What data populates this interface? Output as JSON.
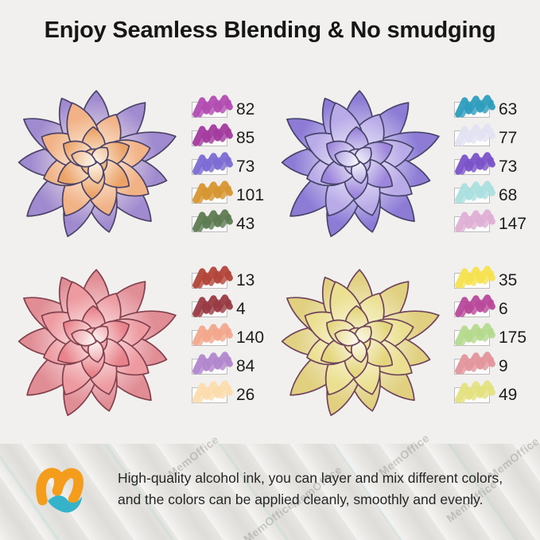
{
  "title": "Enjoy Seamless Blending & No smudging",
  "background": "#f1f0ee",
  "panels": [
    {
      "position": "top-left",
      "flower_alt": "watercolor succulent, peach center with lavender outer petals",
      "palette": {
        "base": "#fcf4ea",
        "outer": "#a18bd0",
        "mid": "#f1b286",
        "inner": "#eca367",
        "center_in": "#fbe3c4",
        "center_out": "#eea35e",
        "ink": "#4b4368"
      },
      "swatches": [
        {
          "num": "82",
          "color": "#b24cb2"
        },
        {
          "num": "85",
          "color": "#a33a9e"
        },
        {
          "num": "73",
          "color": "#7a6ad2"
        },
        {
          "num": "101",
          "color": "#d6952f"
        },
        {
          "num": "43",
          "color": "#5d7b52"
        }
      ]
    },
    {
      "position": "top-right",
      "flower_alt": "watercolor succulent, violet and periwinkle petals with teal hints",
      "palette": {
        "base": "#f2f3fa",
        "outer": "#8d7bd6",
        "mid": "#b9aae8",
        "inner": "#9d86dc",
        "center_in": "#f3f0fa",
        "center_out": "#b9a4e6",
        "ink": "#47456b"
      },
      "swatches": [
        {
          "num": "63",
          "color": "#2d9dbd"
        },
        {
          "num": "77",
          "color": "#e3e2f3"
        },
        {
          "num": "73",
          "color": "#7a52c8"
        },
        {
          "num": "68",
          "color": "#abdfde"
        },
        {
          "num": "147",
          "color": "#dfafd4"
        }
      ]
    },
    {
      "position": "bottom-left",
      "flower_alt": "watercolor succulent, rose pink and coral petals",
      "palette": {
        "base": "#fdf3f2",
        "outer": "#e18d95",
        "mid": "#ed9ba1",
        "inner": "#e8838b",
        "center_in": "#f9d6d8",
        "center_out": "#ea959c",
        "ink": "#83414d"
      },
      "swatches": [
        {
          "num": "13",
          "color": "#b2453a"
        },
        {
          "num": "4",
          "color": "#983a42"
        },
        {
          "num": "140",
          "color": "#f2a68c"
        },
        {
          "num": "84",
          "color": "#b286cd"
        },
        {
          "num": "26",
          "color": "#fbdcad"
        }
      ]
    },
    {
      "position": "bottom-right",
      "flower_alt": "watercolor succulent, cream yellow petals with plum shadows",
      "palette": {
        "base": "#fcf9ea",
        "outer": "#e0d07f",
        "mid": "#ebe092",
        "inner": "#e4d67c",
        "center_in": "#faf4d4",
        "center_out": "#ecdc7e",
        "ink": "#70455a"
      },
      "swatches": [
        {
          "num": "35",
          "color": "#f6e14e"
        },
        {
          "num": "6",
          "color": "#b8489a"
        },
        {
          "num": "175",
          "color": "#b4da8d"
        },
        {
          "num": "9",
          "color": "#e2959b"
        },
        {
          "num": "49",
          "color": "#e3e17e"
        }
      ]
    }
  ],
  "footer": {
    "line1": "High-quality alcohol ink, you can layer and mix different colors,",
    "line2": "and the colors can be applied cleanly, smoothly and evenly.",
    "watermark": "MemOffice",
    "logo": {
      "name": "MemOffice logo",
      "orange": "#f49c1c",
      "teal": "#36b3c9"
    }
  }
}
